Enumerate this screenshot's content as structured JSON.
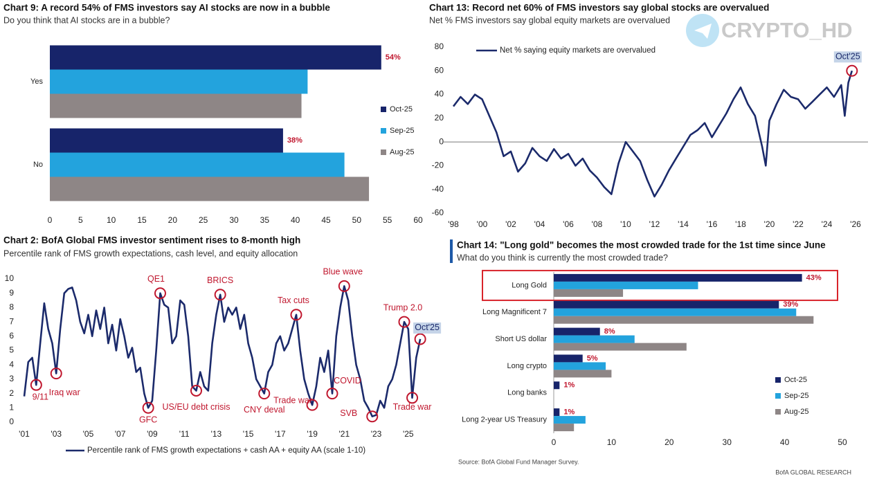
{
  "chart_data": [
    {
      "type": "hbar",
      "title": "Chart 9: A record 54% of FMS investors say AI stocks are now in a bubble",
      "subtitle": "Do you think that AI stocks are in a bubble?",
      "categories": [
        "Yes",
        "No"
      ],
      "series": [
        {
          "name": "Oct-25",
          "color": "#17246a",
          "values": [
            54,
            38
          ],
          "value_labels": [
            "54%",
            "38%"
          ]
        },
        {
          "name": "Sep-25",
          "color": "#23a3dd",
          "values": [
            42,
            48
          ]
        },
        {
          "name": "Aug-25",
          "color": "#8e8686",
          "values": [
            41,
            52
          ]
        }
      ],
      "xlim": [
        0,
        60
      ],
      "xticks": [
        0,
        5,
        10,
        15,
        20,
        25,
        30,
        35,
        40,
        45,
        50,
        55,
        60
      ]
    },
    {
      "type": "line",
      "title": "Chart 13: Record net 60% of FMS investors say global stocks are overvalued",
      "subtitle": "Net % FMS investors say global equity markets are overvalued",
      "x": [
        1998.0,
        1998.5,
        1999.0,
        1999.5,
        2000.0,
        2000.5,
        2001.0,
        2001.5,
        2002.0,
        2002.5,
        2003.0,
        2003.5,
        2004.0,
        2004.5,
        2005.0,
        2005.5,
        2006.0,
        2006.5,
        2007.0,
        2007.5,
        2008.0,
        2008.5,
        2009.0,
        2009.5,
        2010.0,
        2010.5,
        2011.0,
        2011.5,
        2012.0,
        2012.5,
        2013.0,
        2013.5,
        2014.0,
        2014.5,
        2015.0,
        2015.5,
        2016.0,
        2016.5,
        2017.0,
        2017.5,
        2018.0,
        2018.5,
        2019.0,
        2019.5,
        2019.75,
        2020.0,
        2020.5,
        2021.0,
        2021.5,
        2022.0,
        2022.5,
        2023.0,
        2023.5,
        2024.0,
        2024.5,
        2025.0,
        2025.25,
        2025.5,
        2025.75
      ],
      "series": [
        {
          "name": "Net % saying equity markets are overvalued",
          "color": "#1b2a6b",
          "values": [
            30,
            38,
            32,
            40,
            36,
            22,
            8,
            -12,
            -8,
            -25,
            -18,
            -5,
            -12,
            -16,
            -6,
            -14,
            -10,
            -20,
            -14,
            -24,
            -30,
            -38,
            -44,
            -18,
            0,
            -8,
            -16,
            -32,
            -46,
            -36,
            -24,
            -14,
            -4,
            6,
            10,
            16,
            4,
            14,
            24,
            36,
            46,
            32,
            22,
            -4,
            -20,
            18,
            32,
            44,
            38,
            36,
            28,
            34,
            40,
            46,
            38,
            48,
            22,
            50,
            60
          ]
        }
      ],
      "annotations": [
        {
          "label": "Oct'25",
          "x": 2025.75,
          "y": 60
        }
      ],
      "xlim": [
        1998,
        2026
      ],
      "xticks": [
        {
          "value": 1998,
          "label": "'98"
        },
        {
          "value": 2000,
          "label": "'00"
        },
        {
          "value": 2002,
          "label": "'02"
        },
        {
          "value": 2004,
          "label": "'04"
        },
        {
          "value": 2006,
          "label": "'06"
        },
        {
          "value": 2008,
          "label": "'08"
        },
        {
          "value": 2010,
          "label": "'10"
        },
        {
          "value": 2012,
          "label": "'12"
        },
        {
          "value": 2014,
          "label": "'14"
        },
        {
          "value": 2016,
          "label": "'16"
        },
        {
          "value": 2018,
          "label": "'18"
        },
        {
          "value": 2020,
          "label": "'20"
        },
        {
          "value": 2022,
          "label": "'22"
        },
        {
          "value": 2024,
          "label": "'24"
        },
        {
          "value": 2026,
          "label": "'26"
        }
      ],
      "ylim": [
        -60,
        80
      ],
      "yticks": [
        -60,
        -40,
        -20,
        0,
        20,
        40,
        60,
        80
      ]
    },
    {
      "type": "line",
      "title": "Chart 2: BofA Global FMS investor sentiment rises to 8-month high",
      "subtitle": "Percentile rank of FMS growth expectations, cash level, and equity allocation",
      "x": [
        2001.0,
        2001.25,
        2001.5,
        2001.75,
        2002.0,
        2002.25,
        2002.5,
        2002.75,
        2003.0,
        2003.25,
        2003.5,
        2003.75,
        2004.0,
        2004.25,
        2004.5,
        2004.75,
        2005.0,
        2005.25,
        2005.5,
        2005.75,
        2006.0,
        2006.25,
        2006.5,
        2006.75,
        2007.0,
        2007.25,
        2007.5,
        2007.75,
        2008.0,
        2008.25,
        2008.5,
        2008.75,
        2009.0,
        2009.25,
        2009.5,
        2009.75,
        2010.0,
        2010.25,
        2010.5,
        2010.75,
        2011.0,
        2011.25,
        2011.5,
        2011.75,
        2012.0,
        2012.25,
        2012.5,
        2012.75,
        2013.0,
        2013.25,
        2013.5,
        2013.75,
        2014.0,
        2014.25,
        2014.5,
        2014.75,
        2015.0,
        2015.25,
        2015.5,
        2015.75,
        2016.0,
        2016.25,
        2016.5,
        2016.75,
        2017.0,
        2017.25,
        2017.5,
        2017.75,
        2018.0,
        2018.25,
        2018.5,
        2018.75,
        2019.0,
        2019.25,
        2019.5,
        2019.75,
        2020.0,
        2020.25,
        2020.5,
        2020.75,
        2021.0,
        2021.25,
        2021.5,
        2021.75,
        2022.0,
        2022.25,
        2022.5,
        2022.75,
        2023.0,
        2023.25,
        2023.5,
        2023.75,
        2024.0,
        2024.25,
        2024.5,
        2024.75,
        2025.0,
        2025.25,
        2025.5,
        2025.75
      ],
      "series": [
        {
          "name": "Percentile rank of FMS growth expectations + cash AA + equity AA (scale 1-10)",
          "color": "#1b2a6b",
          "values": [
            1.8,
            4.2,
            4.5,
            2.6,
            5.5,
            8.3,
            6.5,
            5.5,
            3.4,
            6.5,
            9.0,
            9.3,
            9.4,
            8.5,
            7.0,
            6.2,
            7.5,
            6.0,
            7.8,
            6.5,
            8.0,
            5.5,
            6.8,
            5.0,
            7.2,
            6.0,
            4.5,
            5.2,
            3.5,
            3.8,
            2.0,
            1.0,
            1.5,
            5.0,
            9.0,
            8.2,
            8.0,
            5.5,
            6.0,
            8.5,
            8.2,
            6.0,
            2.5,
            2.2,
            3.5,
            2.5,
            2.2,
            5.5,
            7.5,
            8.9,
            7.0,
            8.0,
            7.5,
            8.0,
            6.5,
            7.5,
            5.5,
            4.5,
            3.0,
            2.5,
            2.0,
            3.5,
            4.0,
            5.5,
            6.0,
            5.0,
            5.5,
            6.5,
            7.5,
            5.0,
            3.0,
            2.0,
            1.2,
            2.5,
            4.5,
            3.5,
            5.0,
            2.0,
            6.0,
            8.0,
            9.5,
            8.5,
            6.0,
            4.0,
            3.0,
            1.5,
            1.0,
            0.4,
            0.5,
            1.5,
            1.0,
            2.5,
            3.0,
            4.0,
            5.5,
            7.0,
            6.5,
            1.7,
            4.5,
            5.8
          ]
        }
      ],
      "annotations": [
        {
          "label": "9/11",
          "x": 2001.75,
          "y": 2.6
        },
        {
          "label": "Iraq war",
          "x": 2003.0,
          "y": 3.4
        },
        {
          "label": "GFC",
          "x": 2008.75,
          "y": 1.0
        },
        {
          "label": "QE1",
          "x": 2009.5,
          "y": 9.0
        },
        {
          "label": "US/EU debt crisis",
          "x": 2011.75,
          "y": 2.2
        },
        {
          "label": "BRICS",
          "x": 2013.25,
          "y": 8.9
        },
        {
          "label": "CNY deval",
          "x": 2016.0,
          "y": 2.0
        },
        {
          "label": "Tax cuts",
          "x": 2018.0,
          "y": 7.5
        },
        {
          "label": "Trade war",
          "x": 2019.0,
          "y": 1.2
        },
        {
          "label": "COVID",
          "x": 2020.25,
          "y": 2.0
        },
        {
          "label": "Blue wave",
          "x": 2021.0,
          "y": 9.5
        },
        {
          "label": "SVB",
          "x": 2022.75,
          "y": 0.4
        },
        {
          "label": "Trump 2.0",
          "x": 2024.75,
          "y": 7.0
        },
        {
          "label": "Trade war",
          "x": 2025.25,
          "y": 1.7
        },
        {
          "label": "Oct'25",
          "x": 2025.75,
          "y": 5.8
        }
      ],
      "xlim": [
        2001,
        2027
      ],
      "xticks": [
        {
          "value": 2001,
          "label": "'01"
        },
        {
          "value": 2003,
          "label": "'03"
        },
        {
          "value": 2005,
          "label": "'05"
        },
        {
          "value": 2007,
          "label": "'07"
        },
        {
          "value": 2009,
          "label": "'09"
        },
        {
          "value": 2011,
          "label": "'11"
        },
        {
          "value": 2013,
          "label": "'13"
        },
        {
          "value": 2015,
          "label": "'15"
        },
        {
          "value": 2017,
          "label": "'17"
        },
        {
          "value": 2019,
          "label": "'19"
        },
        {
          "value": 2021,
          "label": "'21"
        },
        {
          "value": 2023,
          "label": "'23"
        },
        {
          "value": 2025,
          "label": "'25"
        }
      ],
      "ylim": [
        0,
        10
      ],
      "yticks": [
        0,
        1,
        2,
        3,
        4,
        5,
        6,
        7,
        8,
        9,
        10
      ]
    },
    {
      "type": "hbar",
      "title": "Chart 14: \"Long gold\" becomes the most crowded trade for the 1st time since June",
      "subtitle": "What do you think is currently the most crowded trade?",
      "categories": [
        "Long Gold",
        "Long Magnificent 7",
        "Short US dollar",
        "Long crypto",
        "Long banks",
        "Long 2-year US Treasury"
      ],
      "series": [
        {
          "name": "Oct-25",
          "color": "#17246a",
          "values": [
            43,
            39,
            8,
            5,
            1,
            1
          ],
          "value_labels": [
            "43%",
            "39%",
            "8%",
            "5%",
            "1%",
            "1%"
          ]
        },
        {
          "name": "Sep-25",
          "color": "#23a3dd",
          "values": [
            25,
            42,
            14,
            9,
            0,
            5.5
          ]
        },
        {
          "name": "Aug-25",
          "color": "#8e8686",
          "values": [
            12,
            45,
            23,
            10,
            0,
            3.5
          ]
        }
      ],
      "xlim": [
        0,
        50
      ],
      "xticks": [
        0,
        10,
        20,
        30,
        40,
        50
      ]
    }
  ],
  "source": "Source: BofA Global Fund Manager Survey.",
  "footer": "BofA GLOBAL RESEARCH",
  "watermark": "CRYPTO_HD"
}
